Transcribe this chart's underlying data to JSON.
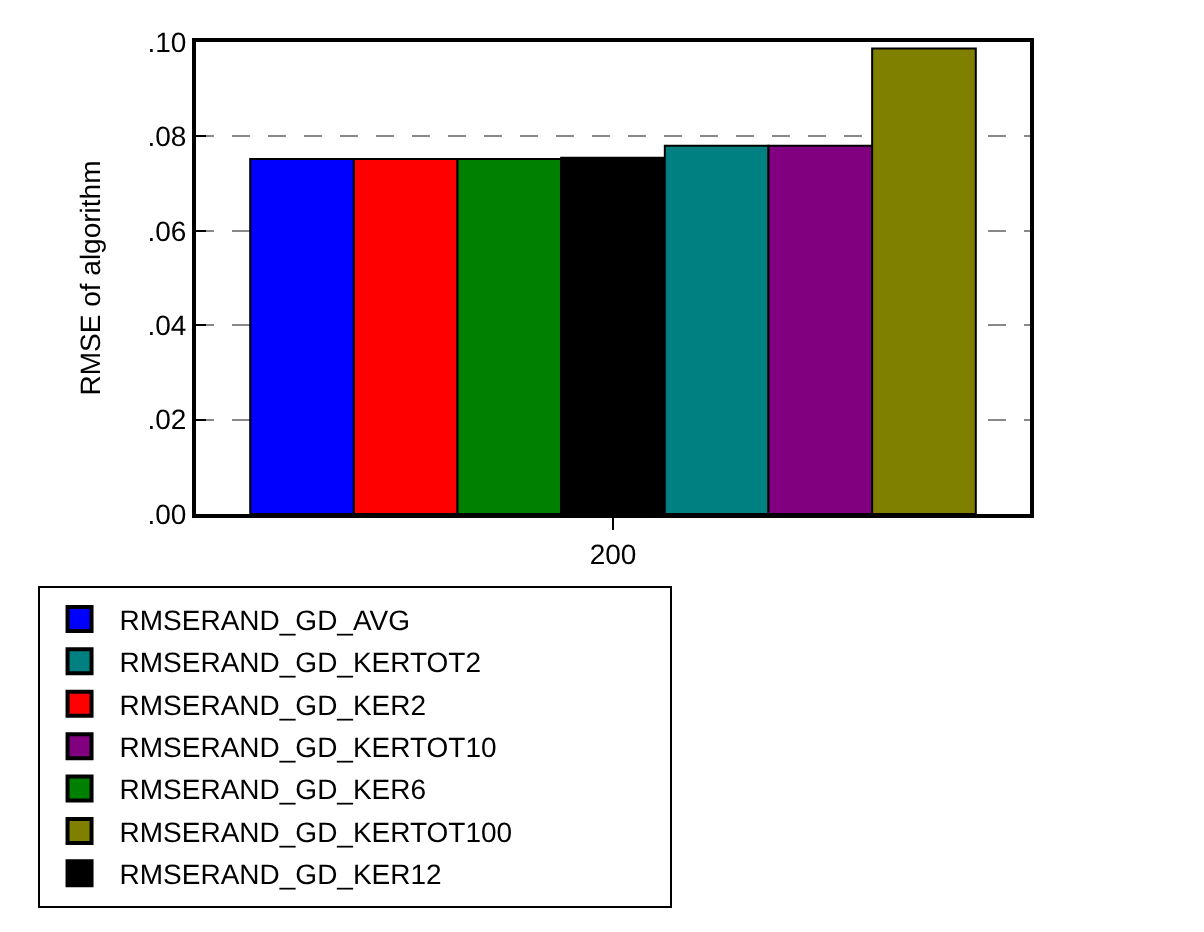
{
  "chart_data": {
    "type": "bar",
    "ylabel": "RMSE of algorithm",
    "categories": [
      "200"
    ],
    "series": [
      {
        "name": "RMSERAND_GD_AVG",
        "color": "#0000ff",
        "values": [
          0.0752
        ]
      },
      {
        "name": "RMSERAND_GD_KER2",
        "color": "#ff0000",
        "values": [
          0.0752
        ]
      },
      {
        "name": "RMSERAND_GD_KER6",
        "color": "#008000",
        "values": [
          0.0752
        ]
      },
      {
        "name": "RMSERAND_GD_KER12",
        "color": "#000000",
        "values": [
          0.0755
        ]
      },
      {
        "name": "RMSERAND_GD_KERTOT2",
        "color": "#008080",
        "values": [
          0.078
        ]
      },
      {
        "name": "RMSERAND_GD_KERTOT10",
        "color": "#800080",
        "values": [
          0.078
        ]
      },
      {
        "name": "RMSERAND_GD_KERTOT100",
        "color": "#808000",
        "values": [
          0.0986
        ]
      }
    ],
    "ylim": [
      0,
      0.1
    ],
    "yticks": [
      {
        "value": 0,
        "label": ".00"
      },
      {
        "value": 0.02,
        "label": ".02"
      },
      {
        "value": 0.04,
        "label": ".04"
      },
      {
        "value": 0.06,
        "label": ".06"
      },
      {
        "value": 0.08,
        "label": ".08"
      },
      {
        "value": 0.1,
        "label": ".10"
      }
    ],
    "grid": "y",
    "legend": "bottom"
  }
}
